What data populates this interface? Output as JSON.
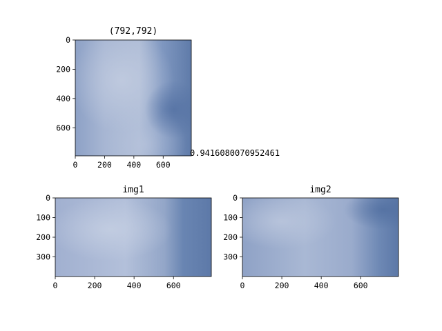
{
  "chart_data": [
    {
      "type": "image",
      "title": "(792,792)",
      "image_shape": [
        792,
        792
      ],
      "xlim": [
        0,
        792
      ],
      "ylim": [
        792,
        0
      ],
      "xticks": [
        0,
        200,
        400,
        600
      ],
      "yticks": [
        0,
        200,
        400,
        600
      ],
      "yaxis_inverted": true,
      "sky_colors": {
        "light": "#aebcd6",
        "mid": "#93a6c8",
        "dark": "#5f7ba9"
      }
    },
    {
      "type": "image",
      "title": "img1",
      "image_shape": [
        400,
        792
      ],
      "xlim": [
        0,
        792
      ],
      "ylim": [
        400,
        0
      ],
      "xticks": [
        0,
        200,
        400,
        600
      ],
      "yticks": [
        0,
        100,
        200,
        300
      ],
      "yaxis_inverted": true,
      "sky_colors": {
        "light": "#b0bdd7",
        "mid": "#95a7c9",
        "dark": "#5d79a8"
      }
    },
    {
      "type": "image",
      "title": "img2",
      "image_shape": [
        400,
        792
      ],
      "xlim": [
        0,
        792
      ],
      "ylim": [
        400,
        0
      ],
      "xticks": [
        0,
        200,
        400,
        600
      ],
      "yticks": [
        0,
        100,
        200,
        300
      ],
      "yaxis_inverted": true,
      "sky_colors": {
        "light": "#a9b8d4",
        "mid": "#8fa2c6",
        "dark": "#5c78a7"
      }
    }
  ],
  "annotation": {
    "text": "0.9416080070952461"
  }
}
